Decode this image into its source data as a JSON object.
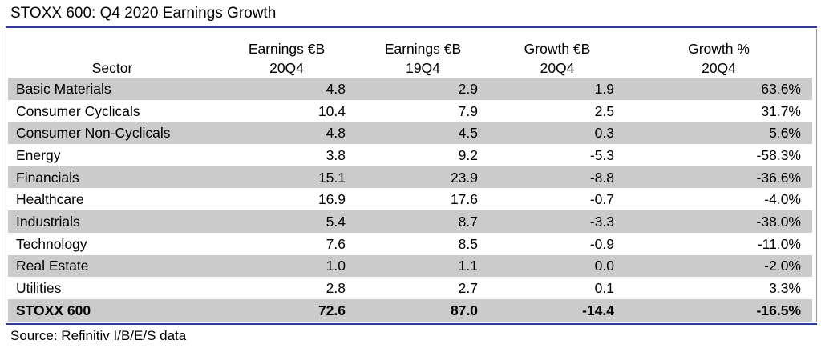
{
  "title": "STOXX 600: Q4 2020 Earnings Growth",
  "header": {
    "sector": "Sector",
    "col1_line1": "Earnings €B",
    "col1_line2": "20Q4",
    "col2_line1": "Earnings €B",
    "col2_line2": "19Q4",
    "col3_line1": "Growth €B",
    "col3_line2": "20Q4",
    "col4_line1": "Growth %",
    "col4_line2": "20Q4"
  },
  "rows": [
    {
      "sector": "Basic Materials",
      "earnings_20q4": "4.8",
      "earnings_19q4": "2.9",
      "growth_eur": "1.9",
      "growth_pct": "63.6%"
    },
    {
      "sector": "Consumer Cyclicals",
      "earnings_20q4": "10.4",
      "earnings_19q4": "7.9",
      "growth_eur": "2.5",
      "growth_pct": "31.7%"
    },
    {
      "sector": "Consumer Non-Cyclicals",
      "earnings_20q4": "4.8",
      "earnings_19q4": "4.5",
      "growth_eur": "0.3",
      "growth_pct": "5.6%"
    },
    {
      "sector": "Energy",
      "earnings_20q4": "3.8",
      "earnings_19q4": "9.2",
      "growth_eur": "-5.3",
      "growth_pct": "-58.3%"
    },
    {
      "sector": "Financials",
      "earnings_20q4": "15.1",
      "earnings_19q4": "23.9",
      "growth_eur": "-8.8",
      "growth_pct": "-36.6%"
    },
    {
      "sector": "Healthcare",
      "earnings_20q4": "16.9",
      "earnings_19q4": "17.6",
      "growth_eur": "-0.7",
      "growth_pct": "-4.0%"
    },
    {
      "sector": "Industrials",
      "earnings_20q4": "5.4",
      "earnings_19q4": "8.7",
      "growth_eur": "-3.3",
      "growth_pct": "-38.0%"
    },
    {
      "sector": "Technology",
      "earnings_20q4": "7.6",
      "earnings_19q4": "8.5",
      "growth_eur": "-0.9",
      "growth_pct": "-11.0%"
    },
    {
      "sector": "Real Estate",
      "earnings_20q4": "1.0",
      "earnings_19q4": "1.1",
      "growth_eur": "0.0",
      "growth_pct": "-2.0%"
    },
    {
      "sector": "Utilities",
      "earnings_20q4": "2.8",
      "earnings_19q4": "2.7",
      "growth_eur": "0.1",
      "growth_pct": "3.3%"
    },
    {
      "sector": "STOXX 600",
      "earnings_20q4": "72.6",
      "earnings_19q4": "87.0",
      "growth_eur": "-14.4",
      "growth_pct": "-16.5%"
    }
  ],
  "source": "Source: Refinitiv I/B/E/S data",
  "colors": {
    "rule": "#2e3d9a",
    "row_shade": "#cbcbcb"
  }
}
